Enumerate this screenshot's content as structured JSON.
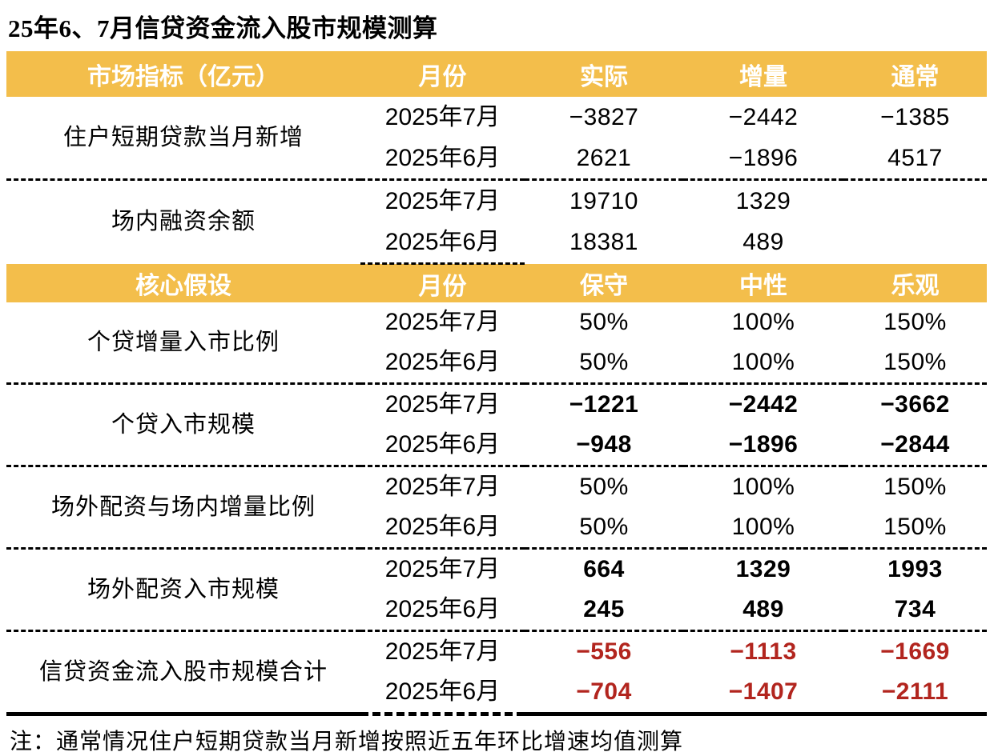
{
  "title": "25年6、7月信贷资金流入股市规模测算",
  "note": "注：通常情况住户短期贷款当月新增按照近五年环比增速均值测算",
  "colors": {
    "header_bg": "#F3BE4B",
    "header_text": "#FFFFFF",
    "total_red": "#B2251E",
    "body_text": "#000000"
  },
  "table": {
    "section_a": {
      "header": {
        "indicator": "市场指标（亿元）",
        "month": "月份",
        "col1": "实际",
        "col2": "增量",
        "col3": "通常"
      },
      "groups": [
        {
          "label": "住户短期贷款当月新增",
          "rows": [
            {
              "month": "2025年7月",
              "values": [
                "−3827",
                "−2442",
                "−1385"
              ]
            },
            {
              "month": "2025年6月",
              "values": [
                "2621",
                "−1896",
                "4517"
              ]
            }
          ]
        },
        {
          "label": "场内融资余额",
          "rows": [
            {
              "month": "2025年7月",
              "values": [
                "19710",
                "1329",
                ""
              ]
            },
            {
              "month": "2025年6月",
              "values": [
                "18381",
                "489",
                ""
              ]
            }
          ]
        }
      ]
    },
    "section_b": {
      "header": {
        "indicator": "核心假设",
        "month": "月份",
        "col1": "保守",
        "col2": "中性",
        "col3": "乐观"
      },
      "groups": [
        {
          "label": "个贷增量入市比例",
          "rows": [
            {
              "month": "2025年7月",
              "values": [
                "50%",
                "100%",
                "150%"
              ]
            },
            {
              "month": "2025年6月",
              "values": [
                "50%",
                "100%",
                "150%"
              ]
            }
          ]
        },
        {
          "label": "个贷入市规模",
          "rows": [
            {
              "month": "2025年7月",
              "values": [
                "−1221",
                "−2442",
                "−3662"
              ]
            },
            {
              "month": "2025年6月",
              "values": [
                "−948",
                "−1896",
                "−2844"
              ]
            }
          ]
        },
        {
          "label": "场外配资与场内增量比例",
          "rows": [
            {
              "month": "2025年7月",
              "values": [
                "50%",
                "100%",
                "150%"
              ]
            },
            {
              "month": "2025年6月",
              "values": [
                "50%",
                "100%",
                "150%"
              ]
            }
          ]
        },
        {
          "label": "场外配资入市规模",
          "rows": [
            {
              "month": "2025年7月",
              "values": [
                "664",
                "1329",
                "1993"
              ]
            },
            {
              "month": "2025年6月",
              "values": [
                "245",
                "489",
                "734"
              ]
            }
          ]
        },
        {
          "label": "信贷资金流入股市规模合计",
          "rows": [
            {
              "month": "2025年7月",
              "values": [
                "−556",
                "−1113",
                "−1669"
              ]
            },
            {
              "month": "2025年6月",
              "values": [
                "−704",
                "−1407",
                "−2111"
              ]
            }
          ]
        }
      ]
    }
  },
  "chart_data": [
    {
      "type": "table",
      "title": "25年6、7月信贷资金流入股市规模测算",
      "columns": [
        "市场指标（亿元）",
        "月份",
        "实际",
        "增量",
        "通常"
      ],
      "rows": [
        [
          "住户短期贷款当月新增",
          "2025年7月",
          -3827,
          -2442,
          -1385
        ],
        [
          "住户短期贷款当月新增",
          "2025年6月",
          2621,
          -1896,
          4517
        ],
        [
          "场内融资余额",
          "2025年7月",
          19710,
          1329,
          null
        ],
        [
          "场内融资余额",
          "2025年6月",
          18381,
          489,
          null
        ]
      ]
    },
    {
      "type": "table",
      "columns": [
        "核心假设",
        "月份",
        "保守",
        "中性",
        "乐观"
      ],
      "rows": [
        [
          "个贷增量入市比例",
          "2025年7月",
          "50%",
          "100%",
          "150%"
        ],
        [
          "个贷增量入市比例",
          "2025年6月",
          "50%",
          "100%",
          "150%"
        ],
        [
          "个贷入市规模",
          "2025年7月",
          -1221,
          -2442,
          -3662
        ],
        [
          "个贷入市规模",
          "2025年6月",
          -948,
          -1896,
          -2844
        ],
        [
          "场外配资与场内增量比例",
          "2025年7月",
          "50%",
          "100%",
          "150%"
        ],
        [
          "场外配资与场内增量比例",
          "2025年6月",
          "50%",
          "100%",
          "150%"
        ],
        [
          "场外配资入市规模",
          "2025年7月",
          664,
          1329,
          1993
        ],
        [
          "场外配资入市规模",
          "2025年6月",
          245,
          489,
          734
        ],
        [
          "信贷资金流入股市规模合计",
          "2025年7月",
          -556,
          -1113,
          -1669
        ],
        [
          "信贷资金流入股市规模合计",
          "2025年6月",
          -704,
          -1407,
          -2111
        ]
      ],
      "footnote": "注：通常情况住户短期贷款当月新增按照近五年环比增速均值测算"
    }
  ]
}
